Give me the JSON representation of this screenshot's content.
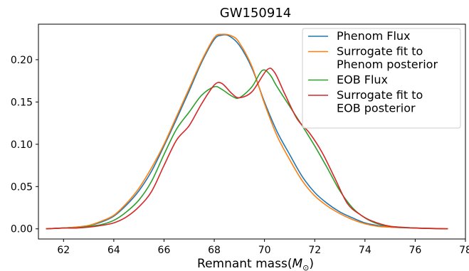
{
  "chart_data": {
    "type": "line",
    "title": "GW150914",
    "xlabel": "Remnant mass",
    "xlabel_math_base": "M",
    "xlabel_math_sub": "⊙",
    "ylabel": "",
    "xlim": [
      61.0,
      78.0
    ],
    "ylim": [
      -0.012,
      0.242
    ],
    "xticks": [
      62,
      64,
      66,
      68,
      70,
      72,
      74,
      76,
      78
    ],
    "xtick_labels": [
      "62",
      "64",
      "66",
      "68",
      "70",
      "72",
      "74",
      "76",
      "78"
    ],
    "yticks": [
      0.0,
      0.05,
      0.1,
      0.15,
      0.2
    ],
    "ytick_labels": [
      "0.00",
      "0.05",
      "0.10",
      "0.15",
      "0.20"
    ],
    "grid": false,
    "legend_position": "top-right",
    "series": [
      {
        "name": "Phenom Flux",
        "color": "#1f77b4",
        "points": [
          [
            61.3,
            0.0
          ],
          [
            62.0,
            0.001
          ],
          [
            62.5,
            0.002
          ],
          [
            63.0,
            0.004
          ],
          [
            63.5,
            0.008
          ],
          [
            64.0,
            0.015
          ],
          [
            64.5,
            0.028
          ],
          [
            65.0,
            0.045
          ],
          [
            65.5,
            0.068
          ],
          [
            66.0,
            0.098
          ],
          [
            66.5,
            0.13
          ],
          [
            67.0,
            0.163
          ],
          [
            67.5,
            0.197
          ],
          [
            68.0,
            0.224
          ],
          [
            68.3,
            0.229
          ],
          [
            68.6,
            0.228
          ],
          [
            69.0,
            0.217
          ],
          [
            69.5,
            0.19
          ],
          [
            70.0,
            0.15
          ],
          [
            70.5,
            0.115
          ],
          [
            71.0,
            0.088
          ],
          [
            71.5,
            0.062
          ],
          [
            72.0,
            0.043
          ],
          [
            72.5,
            0.03
          ],
          [
            73.0,
            0.02
          ],
          [
            73.5,
            0.013
          ],
          [
            74.0,
            0.007
          ],
          [
            74.5,
            0.004
          ],
          [
            75.0,
            0.002
          ],
          [
            76.0,
            0.001
          ],
          [
            77.3,
            0.0
          ]
        ]
      },
      {
        "name": "Surrogate fit to Phenom posterior",
        "color": "#ff7f0e",
        "points": [
          [
            61.3,
            0.0
          ],
          [
            62.0,
            0.001
          ],
          [
            62.5,
            0.002
          ],
          [
            63.0,
            0.004
          ],
          [
            63.5,
            0.009
          ],
          [
            64.0,
            0.016
          ],
          [
            64.5,
            0.03
          ],
          [
            65.0,
            0.048
          ],
          [
            65.5,
            0.072
          ],
          [
            66.0,
            0.1
          ],
          [
            66.5,
            0.133
          ],
          [
            67.0,
            0.166
          ],
          [
            67.5,
            0.199
          ],
          [
            68.0,
            0.226
          ],
          [
            68.3,
            0.23
          ],
          [
            68.7,
            0.228
          ],
          [
            69.0,
            0.22
          ],
          [
            69.5,
            0.192
          ],
          [
            70.0,
            0.148
          ],
          [
            70.5,
            0.11
          ],
          [
            71.0,
            0.082
          ],
          [
            71.5,
            0.057
          ],
          [
            72.0,
            0.039
          ],
          [
            72.5,
            0.027
          ],
          [
            73.0,
            0.018
          ],
          [
            73.5,
            0.011
          ],
          [
            74.0,
            0.006
          ],
          [
            74.5,
            0.003
          ],
          [
            75.0,
            0.002
          ],
          [
            76.0,
            0.001
          ],
          [
            77.3,
            0.0
          ]
        ]
      },
      {
        "name": "EOB Flux",
        "color": "#2ca02c",
        "points": [
          [
            61.3,
            0.0
          ],
          [
            62.0,
            0.001
          ],
          [
            62.5,
            0.001
          ],
          [
            63.0,
            0.003
          ],
          [
            63.5,
            0.005
          ],
          [
            64.0,
            0.01
          ],
          [
            64.5,
            0.02
          ],
          [
            65.0,
            0.034
          ],
          [
            65.5,
            0.056
          ],
          [
            66.0,
            0.088
          ],
          [
            66.5,
            0.118
          ],
          [
            67.0,
            0.138
          ],
          [
            67.5,
            0.158
          ],
          [
            68.0,
            0.168
          ],
          [
            68.3,
            0.165
          ],
          [
            68.7,
            0.157
          ],
          [
            69.0,
            0.155
          ],
          [
            69.5,
            0.168
          ],
          [
            69.9,
            0.187
          ],
          [
            70.2,
            0.183
          ],
          [
            70.5,
            0.168
          ],
          [
            71.0,
            0.145
          ],
          [
            71.5,
            0.122
          ],
          [
            72.0,
            0.098
          ],
          [
            72.5,
            0.072
          ],
          [
            73.0,
            0.045
          ],
          [
            73.5,
            0.025
          ],
          [
            74.0,
            0.013
          ],
          [
            74.5,
            0.006
          ],
          [
            75.0,
            0.003
          ],
          [
            76.0,
            0.001
          ],
          [
            77.3,
            0.0
          ]
        ]
      },
      {
        "name": "Surrogate fit to EOB posterior",
        "color": "#d62728",
        "points": [
          [
            61.3,
            0.0
          ],
          [
            62.0,
            0.001
          ],
          [
            62.5,
            0.001
          ],
          [
            63.0,
            0.002
          ],
          [
            63.5,
            0.004
          ],
          [
            64.0,
            0.007
          ],
          [
            64.5,
            0.014
          ],
          [
            65.0,
            0.026
          ],
          [
            65.5,
            0.044
          ],
          [
            66.0,
            0.075
          ],
          [
            66.5,
            0.105
          ],
          [
            67.0,
            0.122
          ],
          [
            67.5,
            0.148
          ],
          [
            68.0,
            0.17
          ],
          [
            68.3,
            0.172
          ],
          [
            68.7,
            0.16
          ],
          [
            69.0,
            0.155
          ],
          [
            69.5,
            0.162
          ],
          [
            70.1,
            0.188
          ],
          [
            70.4,
            0.185
          ],
          [
            70.8,
            0.16
          ],
          [
            71.3,
            0.13
          ],
          [
            71.8,
            0.113
          ],
          [
            72.3,
            0.09
          ],
          [
            72.8,
            0.06
          ],
          [
            73.3,
            0.03
          ],
          [
            73.8,
            0.017
          ],
          [
            74.3,
            0.009
          ],
          [
            75.0,
            0.003
          ],
          [
            76.0,
            0.001
          ],
          [
            77.3,
            0.0
          ]
        ]
      }
    ],
    "legend": [
      {
        "color": "#1f77b4",
        "lines": [
          "Phenom Flux"
        ]
      },
      {
        "color": "#ff7f0e",
        "lines": [
          "Surrogate fit to",
          "Phenom posterior"
        ]
      },
      {
        "color": "#2ca02c",
        "lines": [
          "EOB Flux"
        ]
      },
      {
        "color": "#d62728",
        "lines": [
          "Surrogate fit to",
          "EOB posterior"
        ]
      }
    ]
  }
}
